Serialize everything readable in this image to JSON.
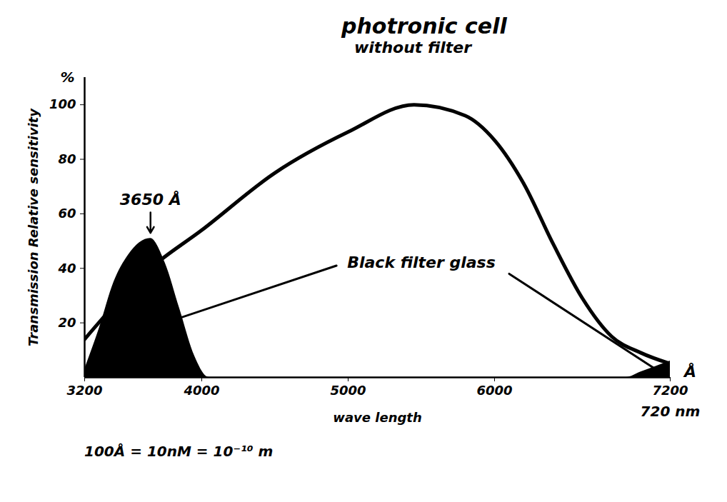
{
  "chart_data": {
    "type": "line",
    "title": "photronic cell",
    "subtitle": "without filter",
    "xlabel": "wave length",
    "ylabel": "Transmission Relative sensitivity",
    "y_unit": "%",
    "x_unit": "Å",
    "xlim": [
      3200,
      7200
    ],
    "xticks": [
      3200,
      4000,
      5000,
      6000,
      7200
    ],
    "ylim": [
      0,
      110
    ],
    "yticks": [
      20,
      40,
      60,
      80,
      100
    ],
    "series": [
      {
        "type": "line",
        "color": "#000000",
        "x": [
          3200,
          3650,
          4000,
          4500,
          5000,
          5450,
          5800,
          6000,
          6200,
          6400,
          6600,
          6800,
          7000,
          7200
        ],
        "values": [
          14,
          40,
          54,
          75,
          90,
          100,
          96,
          87,
          71,
          49,
          29,
          15,
          9,
          5
        ]
      },
      {
        "type": "area",
        "color": "#000000",
        "x": [
          3200,
          3300,
          3400,
          3500,
          3650,
          3750,
          3850,
          3950,
          4050,
          6900,
          7000,
          7100,
          7200
        ],
        "values": [
          3,
          18,
          35,
          45,
          51,
          42,
          25,
          8,
          0,
          0,
          2,
          4,
          6
        ]
      }
    ],
    "annotations": [
      {
        "text": "3650 Å",
        "x": 3650,
        "y": 64,
        "arrow_to": [
          3650,
          53
        ]
      },
      {
        "text": "Black filter glass",
        "x": 5500,
        "y": 42,
        "pointers": [
          [
            [
              4920,
              41
            ],
            [
              3750,
              20
            ]
          ],
          [
            [
              6100,
              38
            ],
            [
              7100,
              3
            ]
          ]
        ]
      },
      {
        "text": "720 nm",
        "x": 7200,
        "y": 0
      }
    ],
    "caption": "100Å = 10nM = 10⁻¹⁰ m"
  }
}
